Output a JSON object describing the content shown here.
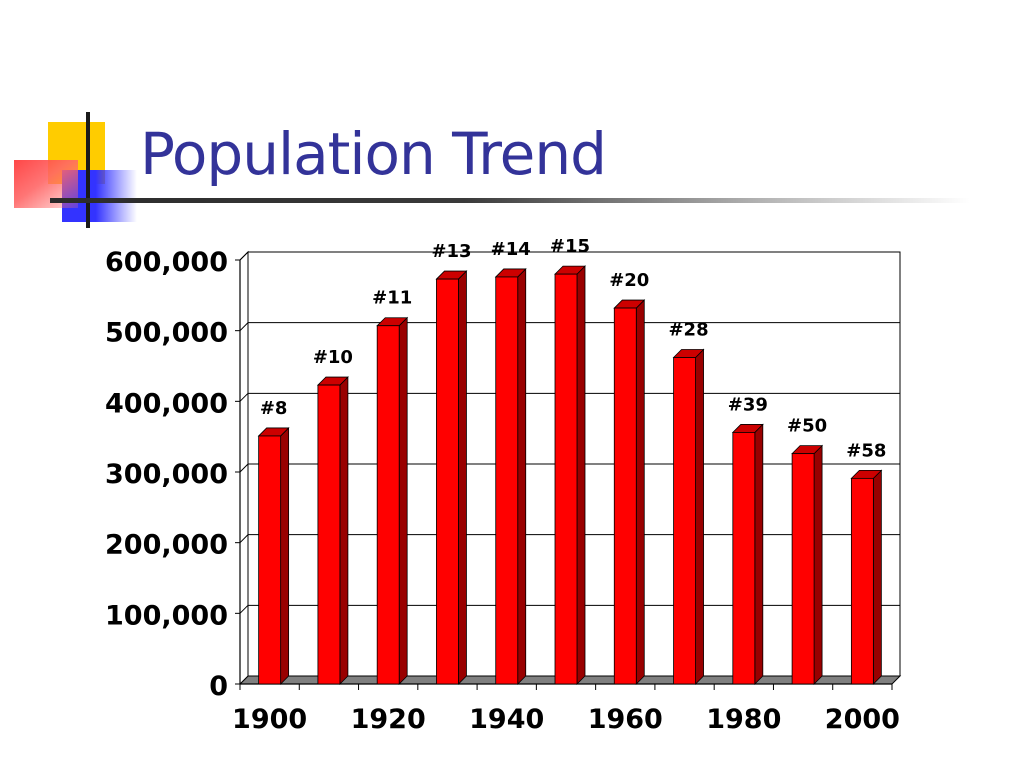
{
  "slide": {
    "title": "Population Trend"
  },
  "colors": {
    "title": "#333399",
    "bar_face": "#ff0000",
    "bar_side": "#990000",
    "bar_top": "#cc0000",
    "gridline": "#000000",
    "deco_yellow": "#ffcc00",
    "deco_blue": "#3333ff",
    "deco_red": "#ff3333"
  },
  "chart_data": {
    "type": "bar",
    "title": "",
    "xlabel": "",
    "ylabel": "",
    "categories": [
      "1900",
      "1910",
      "1920",
      "1930",
      "1940",
      "1950",
      "1960",
      "1970",
      "1980",
      "1990",
      "2000"
    ],
    "values": [
      351000,
      423000,
      507000,
      573000,
      576000,
      580000,
      532000,
      462000,
      356000,
      326000,
      291000
    ],
    "data_labels": [
      "#8",
      "#10",
      "#11",
      "#13",
      "#14",
      "#15",
      "#20",
      "#28",
      "#39",
      "#50",
      "#58"
    ],
    "ylim": [
      0,
      600000
    ],
    "yticks": [
      0,
      100000,
      200000,
      300000,
      400000,
      500000,
      600000
    ],
    "ytick_labels": [
      "0",
      "100,000",
      "200,000",
      "300,000",
      "400,000",
      "500,000",
      "600,000"
    ],
    "xtick_labels": [
      "1900",
      "1920",
      "1940",
      "1960",
      "1980",
      "2000"
    ],
    "grid": true,
    "legend": "none",
    "style": "3d"
  }
}
